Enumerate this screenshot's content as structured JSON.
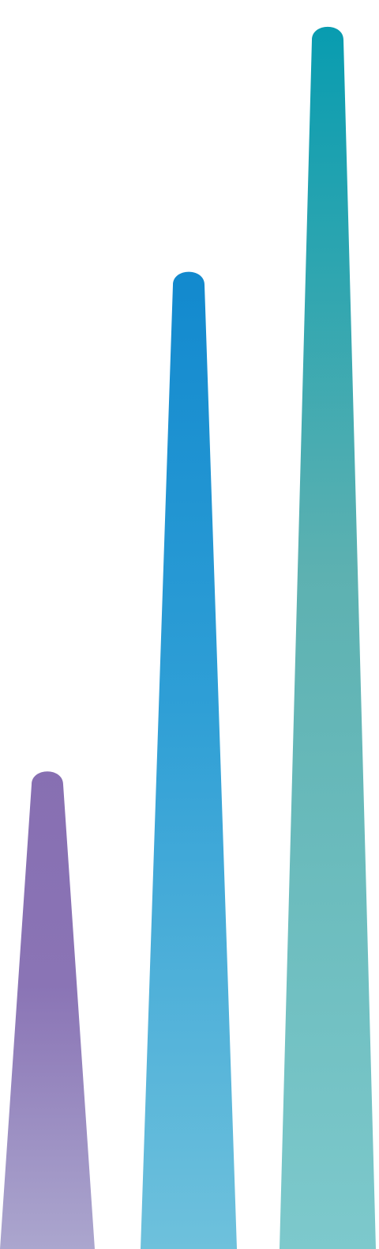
{
  "chart_data": {
    "type": "bar",
    "bar_style": "tapered-spike",
    "categories": [
      "",
      "",
      ""
    ],
    "values": [
      1.0,
      2.04,
      2.55
    ],
    "ylim": [
      0,
      2.6
    ],
    "grid": false,
    "legend": "none",
    "colors": [
      {
        "top": "#876fb2",
        "mid": "#8a74b5",
        "bottom": "#aba6ce"
      },
      {
        "top": "#1289ce",
        "mid": "#2f9fd6",
        "bottom": "#6ec1dc"
      },
      {
        "top": "#089cb0",
        "mid": "#5db1b1",
        "bottom": "#7dc9cc"
      }
    ]
  }
}
